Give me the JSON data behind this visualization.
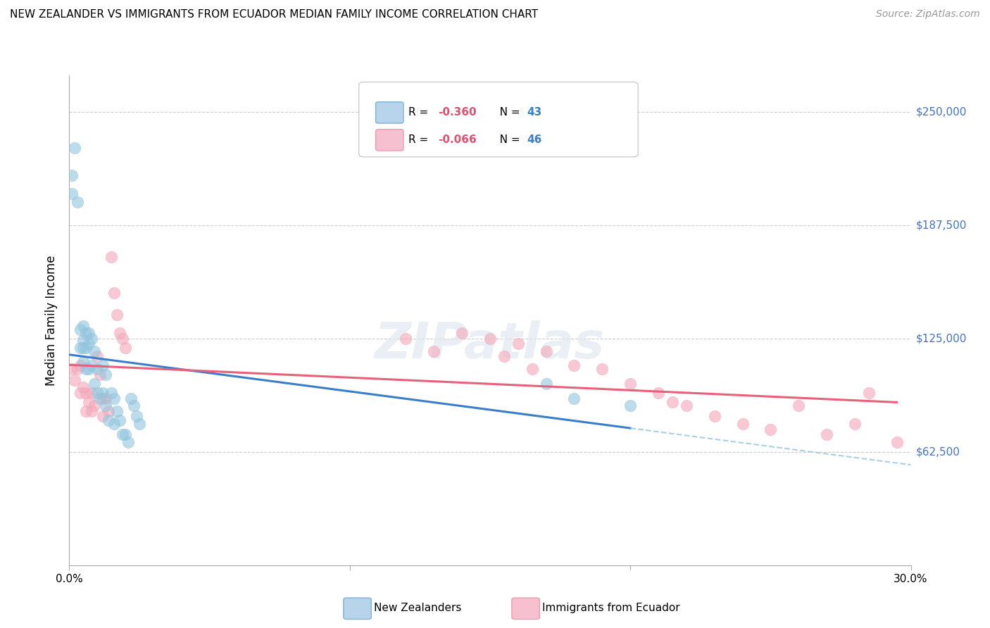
{
  "title": "NEW ZEALANDER VS IMMIGRANTS FROM ECUADOR MEDIAN FAMILY INCOME CORRELATION CHART",
  "source": "Source: ZipAtlas.com",
  "ylabel": "Median Family Income",
  "xlim": [
    0.0,
    0.3
  ],
  "ylim": [
    0,
    270000
  ],
  "yticks": [
    62500,
    125000,
    187500,
    250000
  ],
  "ytick_labels": [
    "$62,500",
    "$125,000",
    "$187,500",
    "$250,000"
  ],
  "legend_bottom_label1": "New Zealanders",
  "legend_bottom_label2": "Immigrants from Ecuador",
  "nz_color": "#92c5de",
  "ec_color": "#f4a6b8",
  "nz_line_color": "#3a7dc9",
  "ec_line_color": "#e8607a",
  "nz_R": "-0.360",
  "nz_N": "43",
  "ec_R": "-0.066",
  "ec_N": "46",
  "nz_x": [
    0.001,
    0.001,
    0.002,
    0.003,
    0.004,
    0.004,
    0.005,
    0.005,
    0.005,
    0.005,
    0.006,
    0.006,
    0.006,
    0.007,
    0.007,
    0.007,
    0.008,
    0.008,
    0.009,
    0.009,
    0.01,
    0.01,
    0.011,
    0.012,
    0.012,
    0.013,
    0.013,
    0.014,
    0.015,
    0.016,
    0.016,
    0.017,
    0.018,
    0.019,
    0.02,
    0.021,
    0.022,
    0.023,
    0.024,
    0.025,
    0.17,
    0.18,
    0.2
  ],
  "nz_y": [
    215000,
    205000,
    230000,
    200000,
    130000,
    120000,
    132000,
    124000,
    120000,
    112000,
    128000,
    120000,
    108000,
    128000,
    122000,
    108000,
    125000,
    110000,
    118000,
    100000,
    108000,
    95000,
    92000,
    110000,
    95000,
    105000,
    88000,
    80000,
    95000,
    92000,
    78000,
    85000,
    80000,
    72000,
    72000,
    68000,
    92000,
    88000,
    82000,
    78000,
    100000,
    92000,
    88000
  ],
  "ec_x": [
    0.001,
    0.002,
    0.003,
    0.004,
    0.004,
    0.005,
    0.006,
    0.006,
    0.007,
    0.008,
    0.008,
    0.009,
    0.01,
    0.011,
    0.012,
    0.012,
    0.013,
    0.014,
    0.015,
    0.016,
    0.017,
    0.018,
    0.019,
    0.02,
    0.12,
    0.13,
    0.14,
    0.15,
    0.155,
    0.16,
    0.165,
    0.17,
    0.18,
    0.19,
    0.2,
    0.21,
    0.215,
    0.22,
    0.23,
    0.24,
    0.25,
    0.26,
    0.27,
    0.28,
    0.285,
    0.295
  ],
  "ec_y": [
    108000,
    102000,
    108000,
    110000,
    95000,
    98000,
    95000,
    85000,
    90000,
    95000,
    85000,
    88000,
    115000,
    105000,
    92000,
    82000,
    92000,
    85000,
    170000,
    150000,
    138000,
    128000,
    125000,
    120000,
    125000,
    118000,
    128000,
    125000,
    115000,
    122000,
    108000,
    118000,
    110000,
    108000,
    100000,
    95000,
    90000,
    88000,
    82000,
    78000,
    75000,
    88000,
    72000,
    78000,
    95000,
    68000
  ]
}
